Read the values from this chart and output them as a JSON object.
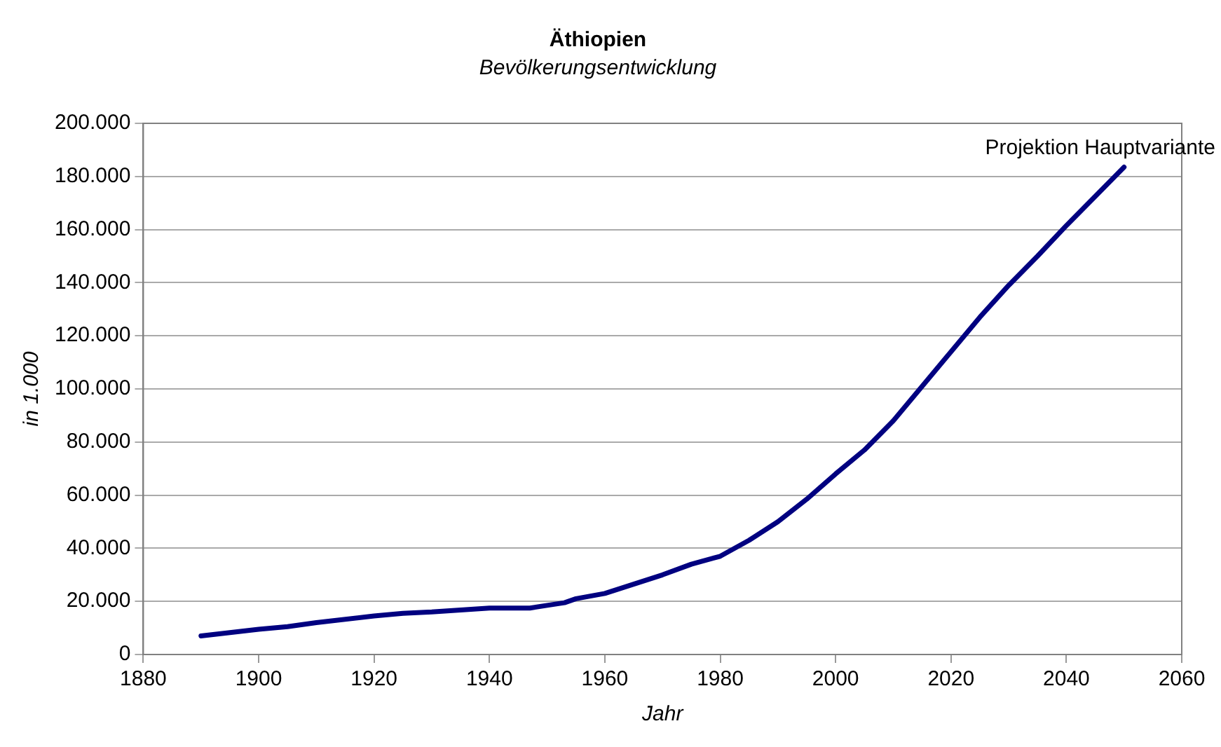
{
  "chart_data": {
    "type": "line",
    "title": "Äthiopien",
    "subtitle": "Bevölkerungsentwicklung",
    "xlabel": "Jahr",
    "ylabel": "in 1.000",
    "x": [
      1890,
      1900,
      1905,
      1910,
      1920,
      1925,
      1930,
      1940,
      1947,
      1950,
      1953,
      1955,
      1960,
      1965,
      1970,
      1975,
      1980,
      1985,
      1990,
      1995,
      2000,
      2005,
      2010,
      2015,
      2020,
      2025,
      2030,
      2035,
      2040,
      2045,
      2050
    ],
    "series": [
      {
        "color": "#000080",
        "values": [
          7000,
          9500,
          10500,
          12000,
          14500,
          15500,
          16000,
          17500,
          17500,
          18500,
          19500,
          21000,
          23000,
          26500,
          30000,
          34000,
          37000,
          43000,
          50000,
          58500,
          68000,
          77000,
          88000,
          101000,
          114000,
          127000,
          139000,
          150000,
          161500,
          172500,
          183500
        ]
      }
    ],
    "xlim": [
      1880,
      2060
    ],
    "xticks": [
      1880,
      1900,
      1920,
      1940,
      1960,
      1980,
      2000,
      2020,
      2040,
      2060
    ],
    "ylim": [
      0,
      200000
    ],
    "yticks": [
      0,
      {
        "value": 20000,
        "label": "20.000"
      },
      {
        "value": 40000,
        "label": "40.000"
      },
      {
        "value": 60000,
        "label": "60.000"
      },
      {
        "value": 80000,
        "label": "80.000"
      },
      {
        "value": 100000,
        "label": "100.000"
      },
      {
        "value": 120000,
        "label": "120.000"
      },
      {
        "value": 140000,
        "label": "140.000"
      },
      {
        "value": 160000,
        "label": "160.000"
      },
      {
        "value": 180000,
        "label": "180.000"
      },
      {
        "value": 200000,
        "label": "200.000"
      }
    ],
    "grid": "y",
    "legend": false,
    "marker": "none",
    "line_style": "solid",
    "annotations": [
      "Projektion Hauptvariante"
    ]
  }
}
